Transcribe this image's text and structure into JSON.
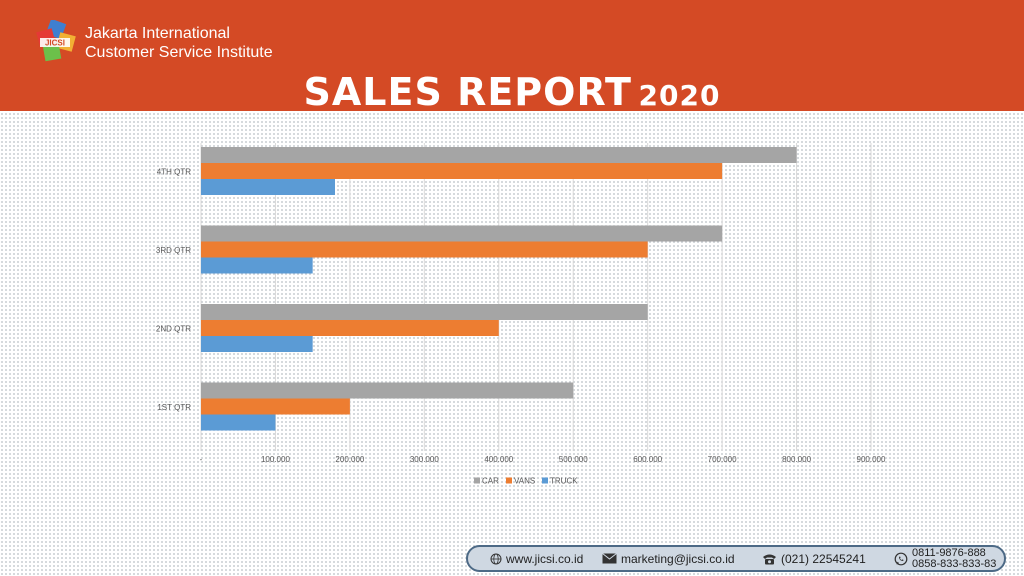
{
  "header": {
    "org_line1": "Jakarta International",
    "org_line2": "Customer Service Institute",
    "logo_text": "JICSI",
    "title_main": "SALES REPORT",
    "title_year": "2020",
    "bg_color": "#d44a25"
  },
  "chart_data": {
    "type": "bar",
    "orientation": "horizontal",
    "categories": [
      "1ST QTR",
      "2ND QTR",
      "3RD QTR",
      "4TH QTR"
    ],
    "series": [
      {
        "name": "CAR",
        "color": "#a5a5a5",
        "values": [
          500000,
          600000,
          700000,
          800000
        ]
      },
      {
        "name": "VANS",
        "color": "#ed7d31",
        "values": [
          200000,
          400000,
          600000,
          700000
        ]
      },
      {
        "name": "TRUCK",
        "color": "#5b9bd5",
        "values": [
          100000,
          150000,
          150000,
          180000
        ]
      }
    ],
    "xlim": [
      0,
      900000
    ],
    "xticks": [
      0,
      100000,
      200000,
      300000,
      400000,
      500000,
      600000,
      700000,
      800000,
      900000
    ],
    "xtick_labels": [
      "-",
      "100.000",
      "200.000",
      "300.000",
      "400.000",
      "500.000",
      "600.000",
      "700.000",
      "800.000",
      "900.000"
    ],
    "grid": true,
    "legend_position": "bottom"
  },
  "footer": {
    "website": "www.jicsi.co.id",
    "email": "marketing@jicsi.co.id",
    "phone": "(021) 22545241",
    "whatsapp_1": "0811-9876-888",
    "whatsapp_2": "0858-833-833-83"
  }
}
